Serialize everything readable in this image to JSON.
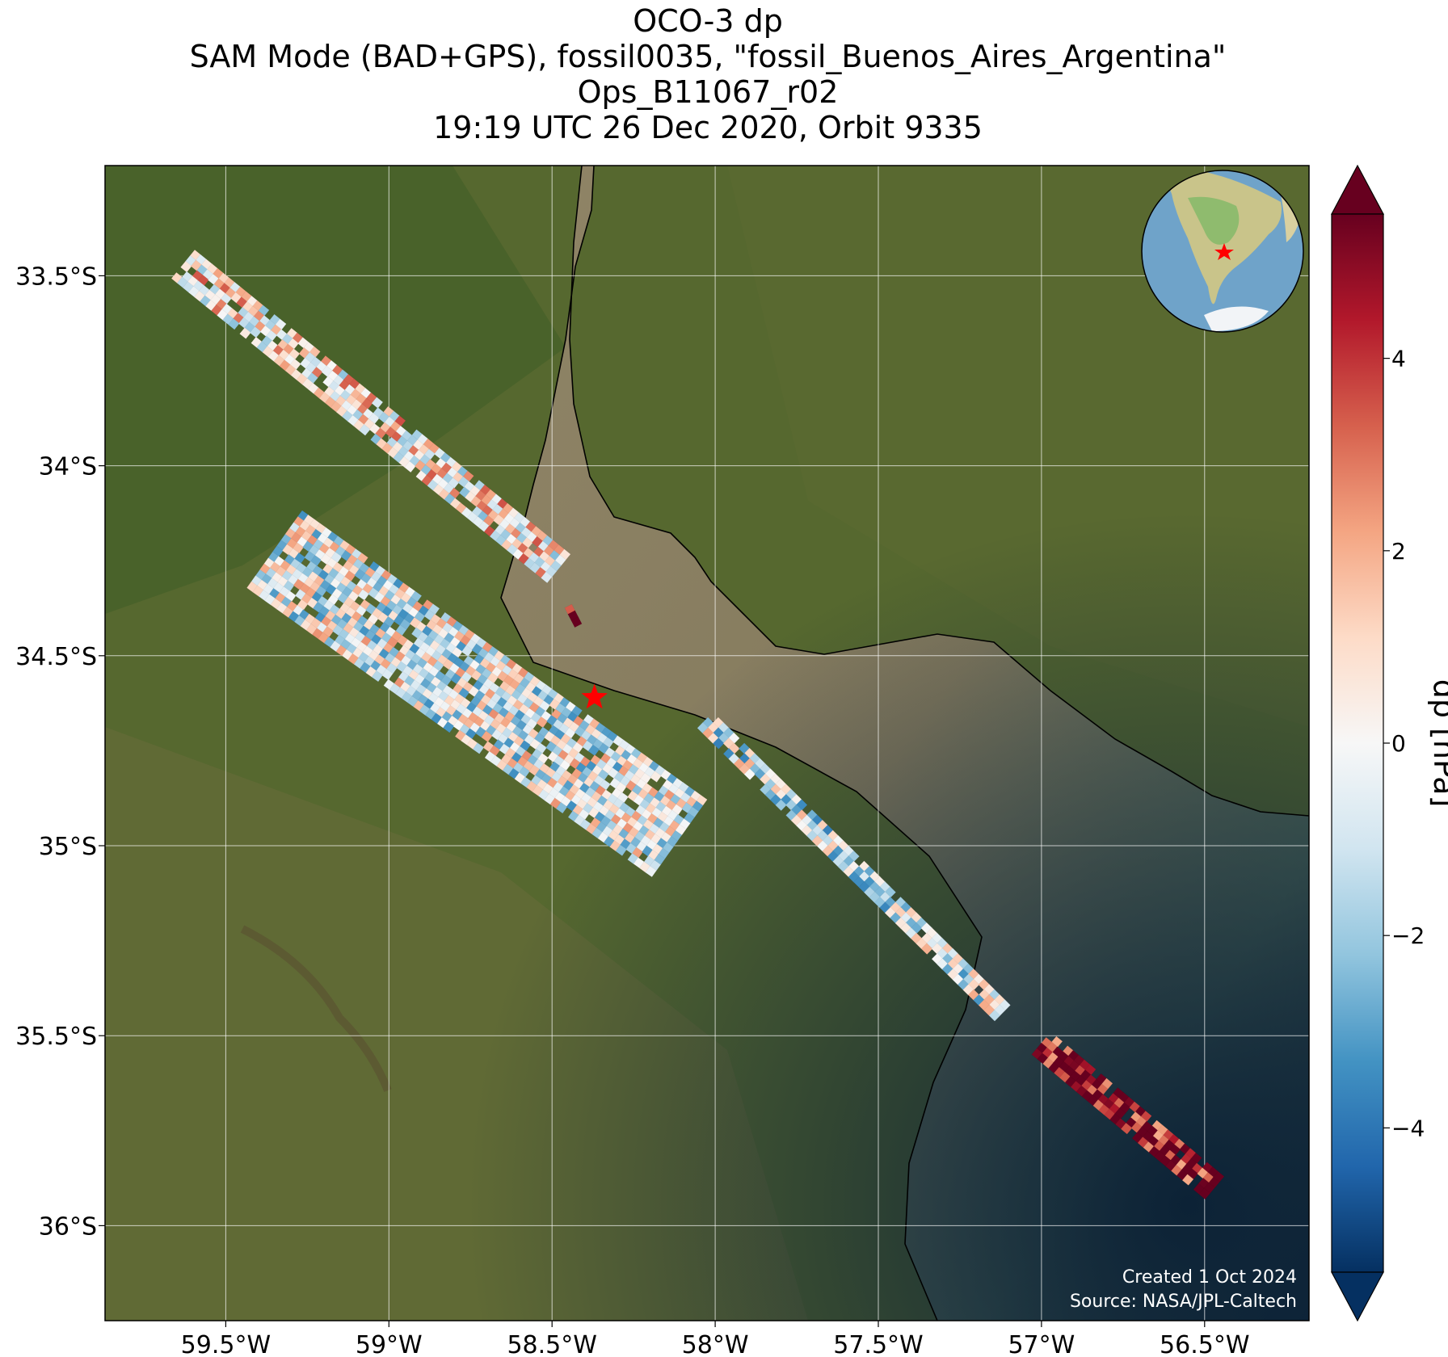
{
  "title": {
    "line1": "OCO-3 dp",
    "line2": "SAM Mode (BAD+GPS), fossil0035, \"fossil_Buenos_Aires_Argentina\"",
    "line3": "Ops_B11067_r02",
    "line4": "19:19 UTC 26 Dec 2020, Orbit 9335"
  },
  "map": {
    "lon_range": [
      -59.87,
      -56.18
    ],
    "lat_range": [
      -36.25,
      -33.21
    ],
    "x_ticks": [
      {
        "value": -59.5,
        "label": "59.5°W"
      },
      {
        "value": -59.0,
        "label": "59°W"
      },
      {
        "value": -58.5,
        "label": "58.5°W"
      },
      {
        "value": -58.0,
        "label": "58°W"
      },
      {
        "value": -57.5,
        "label": "57.5°W"
      },
      {
        "value": -57.0,
        "label": "57°W"
      },
      {
        "value": -56.5,
        "label": "56.5°W"
      }
    ],
    "y_ticks": [
      {
        "value": -33.5,
        "label": "33.5°S"
      },
      {
        "value": -34.0,
        "label": "34°S"
      },
      {
        "value": -34.5,
        "label": "34.5°S"
      },
      {
        "value": -35.0,
        "label": "35°S"
      },
      {
        "value": -35.5,
        "label": "35.5°S"
      },
      {
        "value": -36.0,
        "label": "36°S"
      }
    ],
    "grid": true,
    "target": {
      "lon": -58.37,
      "lat": -34.61,
      "marker": "red-star"
    },
    "inset": "orthographic-globe-south-america",
    "credit_line1": "Created 1 Oct 2024",
    "credit_line2": "Source: NASA/JPL-Caltech"
  },
  "colorbar": {
    "label": "dp [hPa]",
    "cmap": "RdBu_r",
    "range": [
      -5.5,
      5.5
    ],
    "extend": "both",
    "ticks": [
      {
        "value": 4,
        "label": "4"
      },
      {
        "value": 2,
        "label": "2"
      },
      {
        "value": 0,
        "label": "0"
      },
      {
        "value": -2,
        "label": "−2"
      },
      {
        "value": -4,
        "label": "−4"
      }
    ],
    "colors": [
      "#053061",
      "#2166ac",
      "#4393c3",
      "#92c5de",
      "#d1e5f0",
      "#f7f7f7",
      "#fddbc7",
      "#f4a582",
      "#d6604d",
      "#b2182b",
      "#67001f"
    ]
  },
  "chart_data": {
    "type": "scatter",
    "encoding": "footprint swaths colored by dp (hPa)",
    "swaths": [
      {
        "name": "swath-1",
        "start": [
          -59.63,
          -33.47
        ],
        "end": [
          -58.48,
          -34.27
        ],
        "width_deg": 0.11,
        "mean_dp": 0.6
      },
      {
        "name": "swath-2",
        "start": [
          -59.35,
          -34.22
        ],
        "end": [
          -58.11,
          -34.98
        ],
        "width_deg": 0.3,
        "mean_dp": -0.4
      },
      {
        "name": "swath-3",
        "start": [
          -58.03,
          -34.67
        ],
        "end": [
          -57.12,
          -35.44
        ],
        "width_deg": 0.07,
        "mean_dp": -0.8
      },
      {
        "name": "swath-4",
        "start": [
          -57.0,
          -35.52
        ],
        "end": [
          -56.47,
          -35.9
        ],
        "width_deg": 0.1,
        "mean_dp": 5.0
      },
      {
        "name": "swath-5",
        "start": [
          -58.45,
          -34.37
        ],
        "end": [
          -58.42,
          -34.42
        ],
        "width_deg": 0.03,
        "mean_dp": 5.2
      }
    ]
  }
}
